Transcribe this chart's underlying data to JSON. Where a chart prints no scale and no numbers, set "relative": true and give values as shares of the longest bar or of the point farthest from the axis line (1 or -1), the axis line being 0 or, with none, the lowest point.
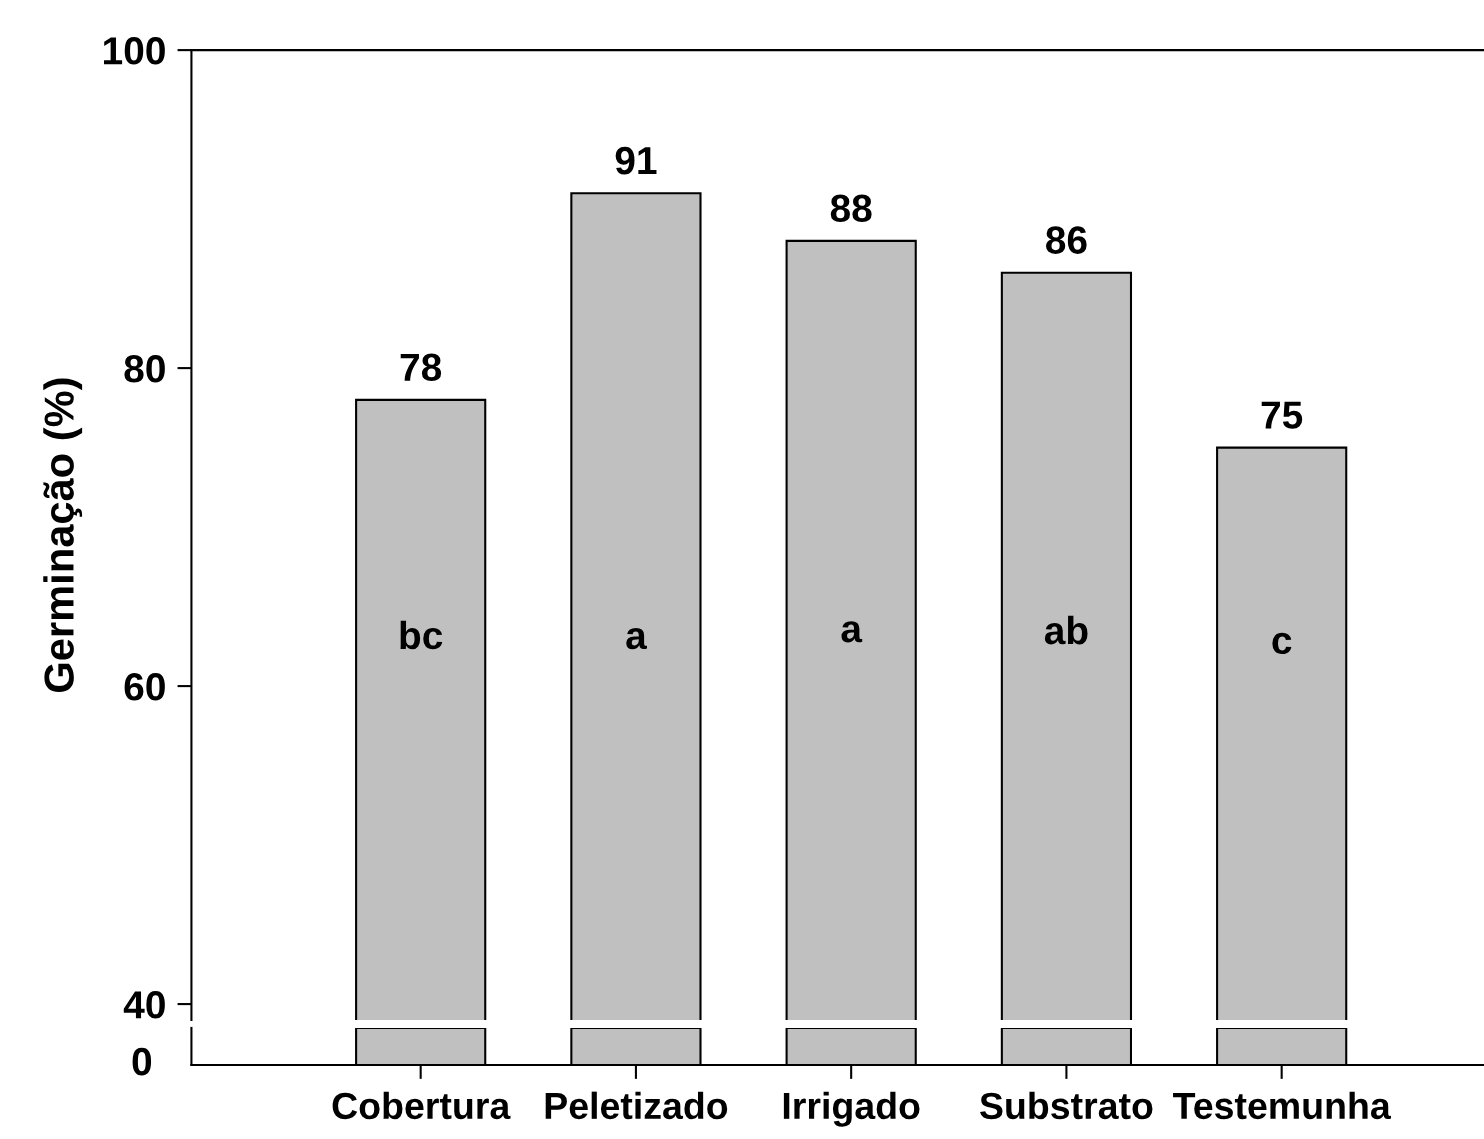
{
  "chart_data": [
    {
      "type": "bar",
      "ylabel": "Germinação (%)",
      "categories": [
        "Cobertura",
        "Peletizado",
        "Irrigado",
        "Substrato",
        "Testemunha"
      ],
      "values": [
        78,
        91,
        88,
        86,
        75
      ],
      "color": "#c0c0c0",
      "ylim": [
        39,
        100
      ],
      "yticks": [
        40,
        60,
        80,
        100
      ],
      "data_labels": true,
      "annotations": [
        "bc",
        "a",
        "a",
        "ab",
        "c"
      ]
    },
    {
      "type": "bar",
      "relative": true,
      "categories": [
        null,
        null,
        null,
        null,
        null
      ],
      "values": [
        1,
        1,
        1,
        1,
        1
      ],
      "color": "#c0c0c0",
      "tick_labels": false,
      "annotations": [
        "0"
      ]
    }
  ]
}
